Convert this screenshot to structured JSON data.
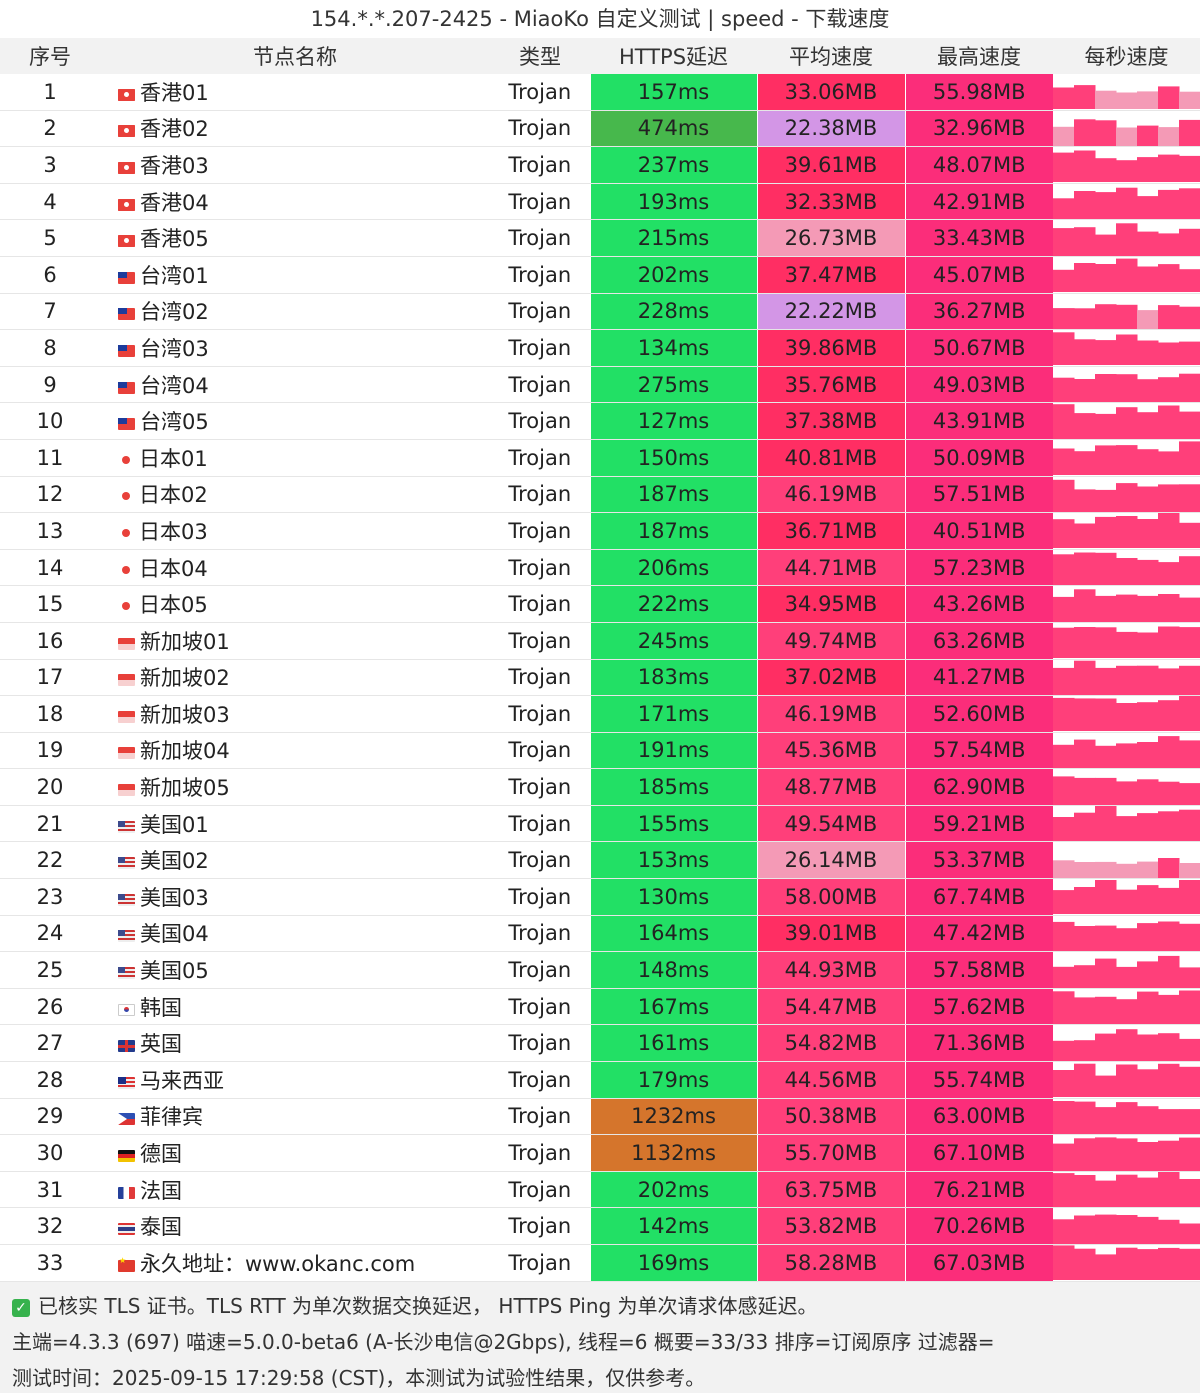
{
  "title": "154.*.*.207-2425 - MiaoKo 自定义测试 | speed - 下载速度",
  "columns": [
    "序号",
    "节点名称",
    "类型",
    "HTTPS延迟",
    "平均速度",
    "最高速度",
    "每秒速度"
  ],
  "colors": {
    "latency_ok": "#22e065",
    "latency_mid": "#47b84c",
    "latency_high": "#d5752c",
    "speed_red": "#ff2e63",
    "speed_pink": "#ff3f7a",
    "speed_lavender": "#d396e6",
    "speed_light_pink": "#f49ab6",
    "speed_max": "#fb2d7a"
  },
  "rows": [
    {
      "idx": "1",
      "flag": "hk-flag-icon",
      "name": "香港01",
      "type": "Trojan",
      "latency": "157ms",
      "avg": "33.06MB",
      "max": "55.98MB"
    },
    {
      "idx": "2",
      "flag": "hk-flag-icon",
      "name": "香港02",
      "type": "Trojan",
      "latency": "474ms",
      "avg": "22.38MB",
      "max": "32.96MB"
    },
    {
      "idx": "3",
      "flag": "hk-flag-icon",
      "name": "香港03",
      "type": "Trojan",
      "latency": "237ms",
      "avg": "39.61MB",
      "max": "48.07MB"
    },
    {
      "idx": "4",
      "flag": "hk-flag-icon",
      "name": "香港04",
      "type": "Trojan",
      "latency": "193ms",
      "avg": "32.33MB",
      "max": "42.91MB"
    },
    {
      "idx": "5",
      "flag": "hk-flag-icon",
      "name": "香港05",
      "type": "Trojan",
      "latency": "215ms",
      "avg": "26.73MB",
      "max": "33.43MB"
    },
    {
      "idx": "6",
      "flag": "tw-flag-icon",
      "name": "台湾01",
      "type": "Trojan",
      "latency": "202ms",
      "avg": "37.47MB",
      "max": "45.07MB"
    },
    {
      "idx": "7",
      "flag": "tw-flag-icon",
      "name": "台湾02",
      "type": "Trojan",
      "latency": "228ms",
      "avg": "22.22MB",
      "max": "36.27MB"
    },
    {
      "idx": "8",
      "flag": "tw-flag-icon",
      "name": "台湾03",
      "type": "Trojan",
      "latency": "134ms",
      "avg": "39.86MB",
      "max": "50.67MB"
    },
    {
      "idx": "9",
      "flag": "tw-flag-icon",
      "name": "台湾04",
      "type": "Trojan",
      "latency": "275ms",
      "avg": "35.76MB",
      "max": "49.03MB"
    },
    {
      "idx": "10",
      "flag": "tw-flag-icon",
      "name": "台湾05",
      "type": "Trojan",
      "latency": "127ms",
      "avg": "37.38MB",
      "max": "43.91MB"
    },
    {
      "idx": "11",
      "flag": "jp-flag-icon",
      "name": "日本01",
      "type": "Trojan",
      "latency": "150ms",
      "avg": "40.81MB",
      "max": "50.09MB"
    },
    {
      "idx": "12",
      "flag": "jp-flag-icon",
      "name": "日本02",
      "type": "Trojan",
      "latency": "187ms",
      "avg": "46.19MB",
      "max": "57.51MB"
    },
    {
      "idx": "13",
      "flag": "jp-flag-icon",
      "name": "日本03",
      "type": "Trojan",
      "latency": "187ms",
      "avg": "36.71MB",
      "max": "40.51MB"
    },
    {
      "idx": "14",
      "flag": "jp-flag-icon",
      "name": "日本04",
      "type": "Trojan",
      "latency": "206ms",
      "avg": "44.71MB",
      "max": "57.23MB"
    },
    {
      "idx": "15",
      "flag": "jp-flag-icon",
      "name": "日本05",
      "type": "Trojan",
      "latency": "222ms",
      "avg": "34.95MB",
      "max": "43.26MB"
    },
    {
      "idx": "16",
      "flag": "sg-flag-icon",
      "name": "新加坡01",
      "type": "Trojan",
      "latency": "245ms",
      "avg": "49.74MB",
      "max": "63.26MB"
    },
    {
      "idx": "17",
      "flag": "sg-flag-icon",
      "name": "新加坡02",
      "type": "Trojan",
      "latency": "183ms",
      "avg": "37.02MB",
      "max": "41.27MB"
    },
    {
      "idx": "18",
      "flag": "sg-flag-icon",
      "name": "新加坡03",
      "type": "Trojan",
      "latency": "171ms",
      "avg": "46.19MB",
      "max": "52.60MB"
    },
    {
      "idx": "19",
      "flag": "sg-flag-icon",
      "name": "新加坡04",
      "type": "Trojan",
      "latency": "191ms",
      "avg": "45.36MB",
      "max": "57.54MB"
    },
    {
      "idx": "20",
      "flag": "sg-flag-icon",
      "name": "新加坡05",
      "type": "Trojan",
      "latency": "185ms",
      "avg": "48.77MB",
      "max": "62.90MB"
    },
    {
      "idx": "21",
      "flag": "us-flag-icon",
      "name": "美国01",
      "type": "Trojan",
      "latency": "155ms",
      "avg": "49.54MB",
      "max": "59.21MB"
    },
    {
      "idx": "22",
      "flag": "us-flag-icon",
      "name": "美国02",
      "type": "Trojan",
      "latency": "153ms",
      "avg": "26.14MB",
      "max": "53.37MB"
    },
    {
      "idx": "23",
      "flag": "us-flag-icon",
      "name": "美国03",
      "type": "Trojan",
      "latency": "130ms",
      "avg": "58.00MB",
      "max": "67.74MB"
    },
    {
      "idx": "24",
      "flag": "us-flag-icon",
      "name": "美国04",
      "type": "Trojan",
      "latency": "164ms",
      "avg": "39.01MB",
      "max": "47.42MB"
    },
    {
      "idx": "25",
      "flag": "us-flag-icon",
      "name": "美国05",
      "type": "Trojan",
      "latency": "148ms",
      "avg": "44.93MB",
      "max": "57.58MB"
    },
    {
      "idx": "26",
      "flag": "kr-flag-icon",
      "name": "韩国",
      "type": "Trojan",
      "latency": "167ms",
      "avg": "54.47MB",
      "max": "57.62MB"
    },
    {
      "idx": "27",
      "flag": "gb-flag-icon",
      "name": "英国",
      "type": "Trojan",
      "latency": "161ms",
      "avg": "54.82MB",
      "max": "71.36MB"
    },
    {
      "idx": "28",
      "flag": "my-flag-icon",
      "name": "马来西亚",
      "type": "Trojan",
      "latency": "179ms",
      "avg": "44.56MB",
      "max": "55.74MB"
    },
    {
      "idx": "29",
      "flag": "ph-flag-icon",
      "name": "菲律宾",
      "type": "Trojan",
      "latency": "1232ms",
      "avg": "50.38MB",
      "max": "63.00MB"
    },
    {
      "idx": "30",
      "flag": "de-flag-icon",
      "name": "德国",
      "type": "Trojan",
      "latency": "1132ms",
      "avg": "55.70MB",
      "max": "67.10MB"
    },
    {
      "idx": "31",
      "flag": "fr-flag-icon",
      "name": "法国",
      "type": "Trojan",
      "latency": "202ms",
      "avg": "63.75MB",
      "max": "76.21MB"
    },
    {
      "idx": "32",
      "flag": "th-flag-icon",
      "name": "泰国",
      "type": "Trojan",
      "latency": "142ms",
      "avg": "53.82MB",
      "max": "70.26MB"
    },
    {
      "idx": "33",
      "flag": "cn-flag-icon",
      "name": "永久地址：www.okanc.com",
      "type": "Trojan",
      "latency": "169ms",
      "avg": "58.28MB",
      "max": "67.03MB"
    }
  ],
  "footer": {
    "line1": "已核实 TLS 证书。TLS RTT 为单次数据交换延迟， HTTPS Ping 为单次请求体感延迟。",
    "line2": "主端=4.3.3 (697) 喵速=5.0.0-beta6 (A-长沙电信@2Gbps), 线程=6 概要=33/33 排序=订阅原序 过滤器=",
    "line3": "测试时间：2025-09-15 17:29:58 (CST)，本测试为试验性结果，仅供参考。"
  }
}
